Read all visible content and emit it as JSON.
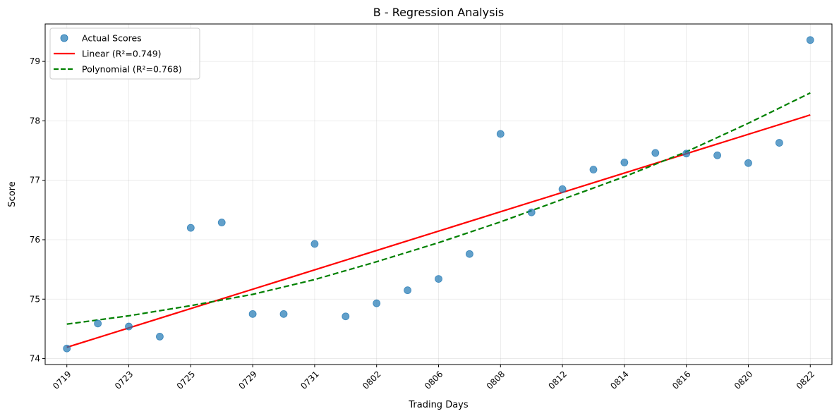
{
  "chart_data": {
    "type": "scatter",
    "title": "B - Regression Analysis",
    "xlabel": "Trading Days",
    "ylabel": "Score",
    "ylim": [
      73.9,
      79.63
    ],
    "xlim": [
      -0.7,
      24.7
    ],
    "grid": true,
    "legend_position": "top-left",
    "x_ticks": [
      {
        "index": 0,
        "label": "0719"
      },
      {
        "index": 2,
        "label": "0723"
      },
      {
        "index": 4,
        "label": "0725"
      },
      {
        "index": 6,
        "label": "0729"
      },
      {
        "index": 8,
        "label": "0731"
      },
      {
        "index": 10,
        "label": "0802"
      },
      {
        "index": 12,
        "label": "0806"
      },
      {
        "index": 14,
        "label": "0808"
      },
      {
        "index": 16,
        "label": "0812"
      },
      {
        "index": 18,
        "label": "0814"
      },
      {
        "index": 20,
        "label": "0816"
      },
      {
        "index": 22,
        "label": "0820"
      },
      {
        "index": 24,
        "label": "0822"
      }
    ],
    "y_ticks": [
      74,
      75,
      76,
      77,
      78,
      79
    ],
    "series": [
      {
        "name": "Actual Scores",
        "kind": "scatter",
        "color": "#1f77b4",
        "x": [
          0,
          1,
          2,
          3,
          4,
          5,
          6,
          7,
          8,
          9,
          10,
          11,
          12,
          13,
          14,
          15,
          16,
          17,
          18,
          19,
          20,
          21,
          22,
          23,
          24
        ],
        "values": [
          74.17,
          74.59,
          74.54,
          74.37,
          76.2,
          76.29,
          74.75,
          74.75,
          75.93,
          74.71,
          74.93,
          75.15,
          75.34,
          75.76,
          77.78,
          76.46,
          76.85,
          77.18,
          77.3,
          77.46,
          77.45,
          77.42,
          77.29,
          77.63,
          79.36
        ]
      },
      {
        "name": "Linear (R²=0.749)",
        "kind": "line",
        "color": "#ff0000",
        "dash": "solid",
        "x": [
          0,
          24
        ],
        "values": [
          74.19,
          78.1
        ]
      },
      {
        "name": "Polynomial (R²=0.768)",
        "kind": "line",
        "color": "#008000",
        "dash": "dashed",
        "x": [
          0,
          2,
          4,
          6,
          8,
          10,
          12,
          14,
          16,
          18,
          20,
          22,
          24
        ],
        "values": [
          74.58,
          74.72,
          74.89,
          75.08,
          75.33,
          75.63,
          75.95,
          76.3,
          76.68,
          77.06,
          77.48,
          77.96,
          78.47
        ]
      }
    ]
  }
}
